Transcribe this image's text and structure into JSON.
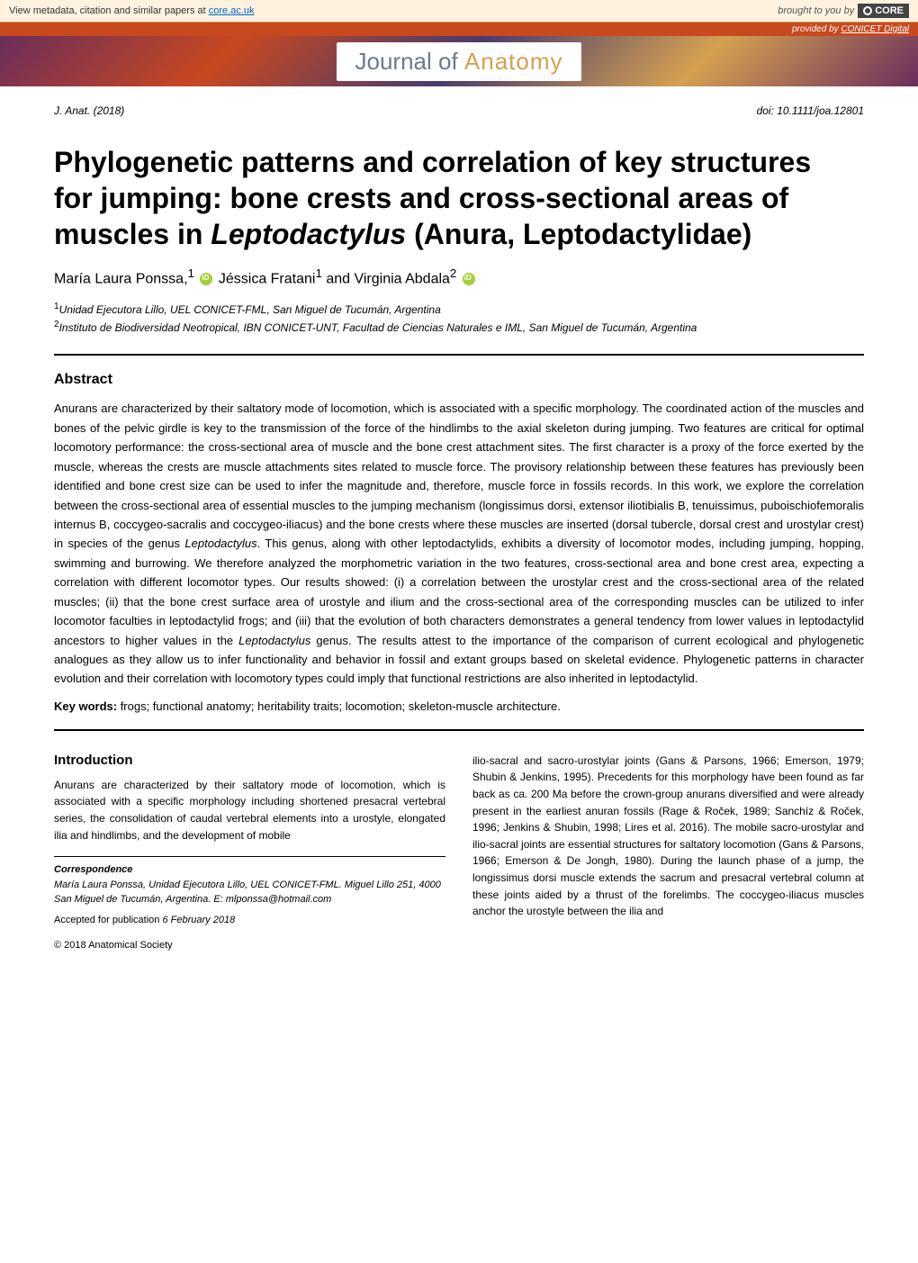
{
  "metadata_bar": {
    "left_prefix": "View metadata, citation and similar papers at ",
    "left_link": "core.ac.uk",
    "right_prefix": "brought to you by ",
    "core_label": "CORE"
  },
  "provided_bar": {
    "prefix": "provided by ",
    "link": "CONICET Digital"
  },
  "journal_banner": {
    "prefix": "Journal of ",
    "main": "Anatomy"
  },
  "header": {
    "journal_ref": "J. Anat. (2018)",
    "doi": "doi: 10.1111/joa.12801"
  },
  "title": {
    "line1": "Phylogenetic patterns and correlation of key structures",
    "line2": "for jumping: bone crests and cross-sectional areas of",
    "line3_pre": "muscles in ",
    "line3_italic": "Leptodactylus",
    "line3_post": " (Anura, Leptodactylidae)"
  },
  "authors": {
    "a1": "María Laura Ponssa,",
    "a1_sup": "1",
    "a2": " Jéssica Fratani",
    "a2_sup": "1",
    "a3": " and Virginia Abdala",
    "a3_sup": "2"
  },
  "affiliations": {
    "aff1_sup": "1",
    "aff1": "Unidad Ejecutora Lillo, UEL CONICET-FML, San Miguel de Tucumán, Argentina",
    "aff2_sup": "2",
    "aff2": "Instituto de Biodiversidad Neotropical, IBN CONICET-UNT, Facultad de Ciencias Naturales e IML, San Miguel de Tucumán, Argentina"
  },
  "abstract": {
    "heading": "Abstract",
    "text_pre": "Anurans are characterized by their saltatory mode of locomotion, which is associated with a specific morphology. The coordinated action of the muscles and bones of the pelvic girdle is key to the transmission of the force of the hindlimbs to the axial skeleton during jumping. Two features are critical for optimal locomotory performance: the cross-sectional area of muscle and the bone crest attachment sites. The first character is a proxy of the force exerted by the muscle, whereas the crests are muscle attachments sites related to muscle force. The provisory relationship between these features has previously been identified and bone crest size can be used to infer the magnitude and, therefore, muscle force in fossils records. In this work, we explore the correlation between the cross-sectional area of essential muscles to the jumping mechanism (longissimus dorsi, extensor iliotibialis B, tenuissimus, puboischiofemoralis internus B, coccygeo-sacralis and coccygeo-iliacus) and the bone crests where these muscles are inserted (dorsal tubercle, dorsal crest and urostylar crest) in species of the genus ",
    "italic1": "Leptodactylus",
    "text_mid1": ". This genus, along with other leptodactylids, exhibits a diversity of locomotor modes, including jumping, hopping, swimming and burrowing. We therefore analyzed the morphometric variation in the two features, cross-sectional area and bone crest area, expecting a correlation with different locomotor types. Our results showed: (i) a correlation between the urostylar crest and the cross-sectional area of the related muscles; (ii) that the bone crest surface area of urostyle and ilium and the cross-sectional area of the corresponding muscles can be utilized to infer locomotor faculties in leptodactylid frogs; and (iii) that the evolution of both characters demonstrates a general tendency from lower values in leptodactylid ancestors to higher values in the ",
    "italic2": "Leptodactylus",
    "text_post": " genus. The results attest to the importance of the comparison of current ecological and phylogenetic analogues as they allow us to infer functionality and behavior in fossil and extant groups based on skeletal evidence. Phylogenetic patterns in character evolution and their correlation with locomotory types could imply that functional restrictions are also inherited in leptodactylid."
  },
  "keywords": {
    "label": "Key words: ",
    "text": "frogs; functional anatomy; heritability traits; locomotion; skeleton-muscle architecture."
  },
  "introduction": {
    "heading": "Introduction",
    "col1": "Anurans are characterized by their saltatory mode of locomotion, which is associated with a specific morphology including shortened presacral vertebral series, the consolidation of caudal vertebral elements into a urostyle, elongated ilia and hindlimbs, and the development of mobile",
    "col2": "ilio-sacral and sacro-urostylar joints (Gans & Parsons, 1966; Emerson, 1979; Shubin & Jenkins, 1995). Precedents for this morphology have been found as far back as ca. 200 Ma before the crown-group anurans diversified and were already present in the earliest anuran fossils (Rage & Roček, 1989; Sanchíz & Roček, 1996; Jenkins & Shubin, 1998; Lires et al. 2016). The mobile sacro-urostylar and ilio-sacral joints are essential structures for saltatory locomotion (Gans & Parsons, 1966; Emerson & De Jongh, 1980). During the launch phase of a jump, the longissimus dorsi muscle extends the sacrum and presacral vertebral column at these joints aided by a thrust of the forelimbs. The coccygeo-iliacus muscles anchor the urostyle between the ilia and"
  },
  "correspondence": {
    "label": "Correspondence",
    "body": "María Laura Ponssa, Unidad Ejecutora Lillo, UEL CONICET-FML. Miguel Lillo 251, 4000 San Miguel de Tucumán, Argentina. E: mlponssa@hotmail.com"
  },
  "accepted": {
    "prefix": "Accepted for publication ",
    "date": "6 February 2018"
  },
  "copyright": "© 2018 Anatomical Society",
  "colors": {
    "metadata_bg": "#fff3e0",
    "provided_bg": "#c84820",
    "orcid_green": "#a6ce39",
    "core_bg": "#444444",
    "link_blue": "#0066cc"
  }
}
